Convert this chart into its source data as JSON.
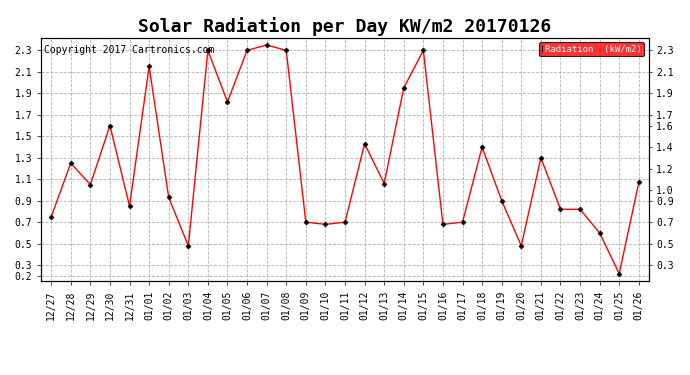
{
  "title": "Solar Radiation per Day KW/m2 20170126",
  "copyright": "Copyright 2017 Cartronics.com",
  "legend_label": "Radiation  (kW/m2)",
  "x_labels": [
    "12/27",
    "12/28",
    "12/29",
    "12/30",
    "12/31",
    "01/01",
    "01/02",
    "01/03",
    "01/04",
    "01/05",
    "01/06",
    "01/07",
    "01/08",
    "01/09",
    "01/10",
    "01/11",
    "01/12",
    "01/13",
    "01/14",
    "01/15",
    "01/16",
    "01/17",
    "01/18",
    "01/19",
    "01/20",
    "01/21",
    "01/22",
    "01/23",
    "01/24",
    "01/25",
    "01/26"
  ],
  "y_values": [
    0.75,
    1.25,
    1.05,
    1.6,
    0.85,
    2.15,
    0.93,
    0.48,
    2.3,
    1.82,
    2.3,
    2.35,
    2.3,
    0.7,
    0.68,
    0.7,
    1.43,
    1.06,
    1.95,
    2.3,
    0.68,
    0.7,
    1.4,
    0.9,
    0.48,
    1.3,
    0.82,
    0.82,
    0.6,
    0.22,
    1.07
  ],
  "line_color": "red",
  "marker_color": "black",
  "background_color": "#ffffff",
  "grid_color": "#aaaaaa",
  "ylim_min": 0.15,
  "ylim_max": 2.42,
  "yticks_left": [
    0.2,
    0.3,
    0.5,
    0.7,
    0.9,
    1.1,
    1.3,
    1.5,
    1.7,
    1.9,
    2.1,
    2.3
  ],
  "yticks_right": [
    0.3,
    0.5,
    0.7,
    0.9,
    1.0,
    1.2,
    1.4,
    1.6,
    1.7,
    1.9,
    2.1,
    2.3
  ],
  "legend_bg": "#ff0000",
  "legend_text_color": "#ffffff",
  "title_fontsize": 13,
  "tick_fontsize": 7,
  "copyright_fontsize": 7
}
